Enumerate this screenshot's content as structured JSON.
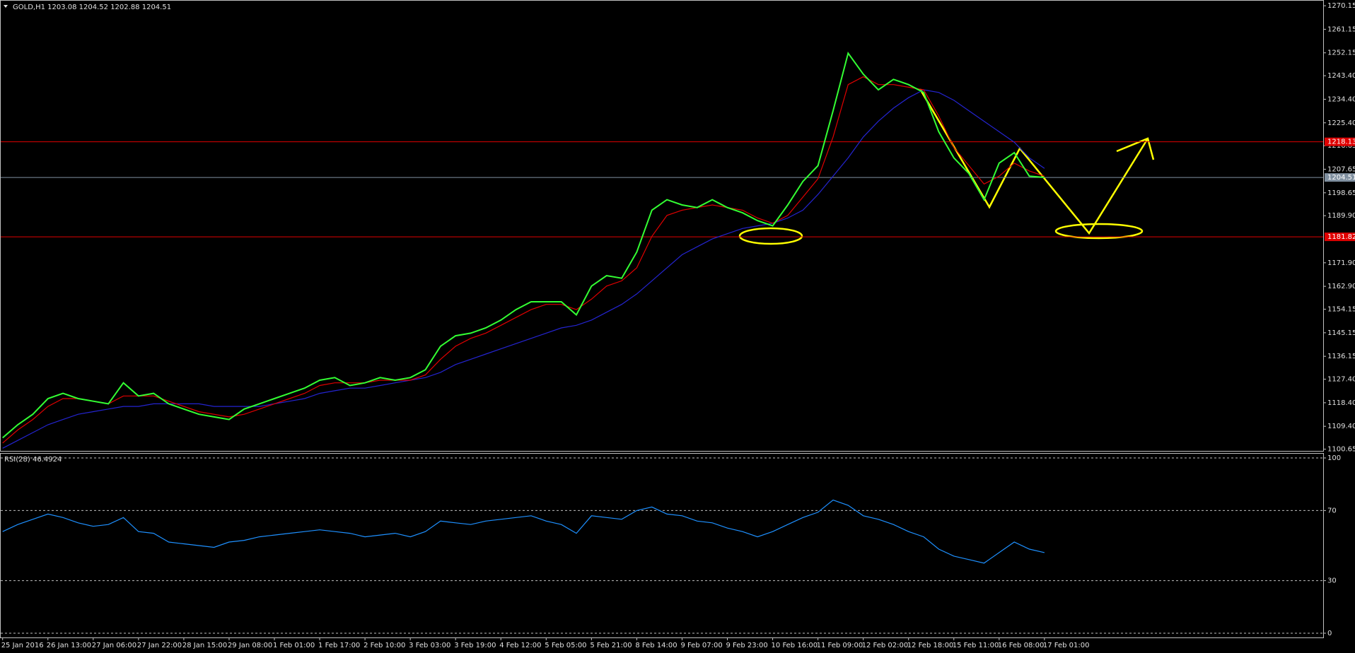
{
  "chart_data": [
    {
      "type": "line",
      "title": "GOLD,H1  1203.08 1204.52 1202.88 1204.51",
      "categories": [
        "25 Jan 2016",
        null,
        null,
        "26 Jan 13:00",
        null,
        null,
        "27 Jan 06:00",
        null,
        null,
        "27 Jan 22:00",
        null,
        null,
        "28 Jan 15:00",
        null,
        null,
        "29 Jan 08:00",
        null,
        null,
        "1 Feb 01:00",
        null,
        null,
        "1 Feb 17:00",
        null,
        null,
        "2 Feb 10:00",
        null,
        null,
        "3 Feb 03:00",
        null,
        null,
        "3 Feb 19:00",
        null,
        null,
        "4 Feb 12:00",
        null,
        null,
        "5 Feb 05:00",
        null,
        null,
        "5 Feb 21:00",
        null,
        null,
        "8 Feb 14:00",
        null,
        null,
        "9 Feb 07:00",
        null,
        null,
        "9 Feb 23:00",
        null,
        null,
        "10 Feb 16:00",
        null,
        null,
        "11 Feb 09:00",
        null,
        null,
        "12 Feb 02:00",
        null,
        null,
        "12 Feb 18:00",
        null,
        null,
        "15 Feb 11:00",
        null,
        null,
        "16 Feb 08:00",
        null,
        null,
        "17 Feb 01:00"
      ],
      "series": [
        {
          "color": "#33ff33",
          "values": [
            1105,
            1110,
            1114,
            1120,
            1122,
            1120,
            1119,
            1118,
            1126,
            1121,
            1122,
            1118,
            1116,
            1114,
            1113,
            1112,
            1116,
            1118,
            1120,
            1122,
            1124,
            1127,
            1128,
            1125,
            1126,
            1128,
            1127,
            1128,
            1131,
            1140,
            1144,
            1145,
            1147,
            1150,
            1154,
            1157,
            1157,
            1157,
            1152,
            1163,
            1167,
            1166,
            1176,
            1192,
            1196,
            1194,
            1193,
            1196,
            1193,
            1191,
            1188,
            1186,
            1194,
            1203,
            1209,
            1230,
            1252,
            1244,
            1238,
            1242,
            1240,
            1237,
            1222,
            1212,
            1206,
            1196,
            1210,
            1214,
            1205,
            1204.51
          ]
        },
        {
          "color": "#e00000",
          "values": [
            1103,
            1108,
            1112,
            1117,
            1120,
            1120,
            1119,
            1118,
            1121,
            1121,
            1121,
            1119,
            1117,
            1115,
            1114,
            1113,
            1114,
            1116,
            1118,
            1120,
            1122,
            1125,
            1126,
            1126,
            1126,
            1127,
            1127,
            1127,
            1129,
            1135,
            1140,
            1143,
            1145,
            1148,
            1151,
            1154,
            1156,
            1156,
            1154,
            1158,
            1163,
            1165,
            1170,
            1182,
            1190,
            1192,
            1193,
            1194,
            1193,
            1192,
            1189,
            1187,
            1190,
            1197,
            1204,
            1220,
            1240,
            1243,
            1240,
            1240,
            1239,
            1238,
            1228,
            1216,
            1209,
            1202,
            1205,
            1210,
            1207,
            1205
          ]
        },
        {
          "color": "#2424d0",
          "values": [
            1101,
            1104,
            1107,
            1110,
            1112,
            1114,
            1115,
            1116,
            1117,
            1117,
            1118,
            1118,
            1118,
            1118,
            1117,
            1117,
            1117,
            1117,
            1118,
            1119,
            1120,
            1122,
            1123,
            1124,
            1124,
            1125,
            1126,
            1127,
            1128,
            1130,
            1133,
            1135,
            1137,
            1139,
            1141,
            1143,
            1145,
            1147,
            1148,
            1150,
            1153,
            1156,
            1160,
            1165,
            1170,
            1175,
            1178,
            1181,
            1183,
            1185,
            1186,
            1187,
            1189,
            1192,
            1198,
            1205,
            1212,
            1220,
            1226,
            1231,
            1235,
            1238,
            1237,
            1234,
            1230,
            1226,
            1222,
            1218,
            1212,
            1208
          ]
        }
      ],
      "levels": [
        {
          "value": 1218.13,
          "color": "#e00000"
        },
        {
          "value": 1181.82,
          "color": "#e00000"
        },
        {
          "value": 1204.51,
          "color": "#8090a0"
        }
      ],
      "ylim": [
        1100,
        1271.8
      ],
      "yticks": [
        1270.15,
        1261.15,
        1252.15,
        {
          "value": 1243.4,
          "label": "1243.40"
        },
        {
          "value": 1234.4,
          "label": "1234.40"
        },
        {
          "value": 1225.4,
          "label": "1225.40"
        },
        1216.65,
        1207.65,
        1198.65,
        {
          "value": 1189.9,
          "label": "1189.90"
        },
        {
          "value": 1171.9,
          "label": "1171.90"
        },
        {
          "value": 1162.9,
          "label": "1162.90"
        },
        1154.15,
        1145.15,
        1136.15,
        {
          "value": 1127.4,
          "label": "1127.40"
        },
        {
          "value": 1118.4,
          "label": "1118.40"
        },
        {
          "value": 1109.4,
          "label": "1109.40"
        },
        1100.65
      ]
    },
    {
      "type": "line",
      "title": "RSI(28) 46.4924",
      "series": [
        {
          "color": "#1e90ff",
          "values": [
            58,
            62,
            65,
            68,
            66,
            63,
            61,
            62,
            66,
            58,
            57,
            52,
            51,
            50,
            49,
            52,
            53,
            55,
            56,
            57,
            58,
            59,
            58,
            57,
            55,
            56,
            57,
            55,
            58,
            64,
            63,
            62,
            64,
            65,
            66,
            67,
            64,
            62,
            57,
            67,
            66,
            65,
            70,
            72,
            68,
            67,
            64,
            63,
            60,
            58,
            55,
            58,
            62,
            66,
            69,
            76,
            73,
            67,
            65,
            62,
            58,
            55,
            48,
            44,
            42,
            40,
            46,
            52,
            48,
            46
          ]
        }
      ],
      "ylim": [
        0,
        100
      ],
      "yticks": [
        100,
        70,
        30,
        0
      ]
    }
  ]
}
